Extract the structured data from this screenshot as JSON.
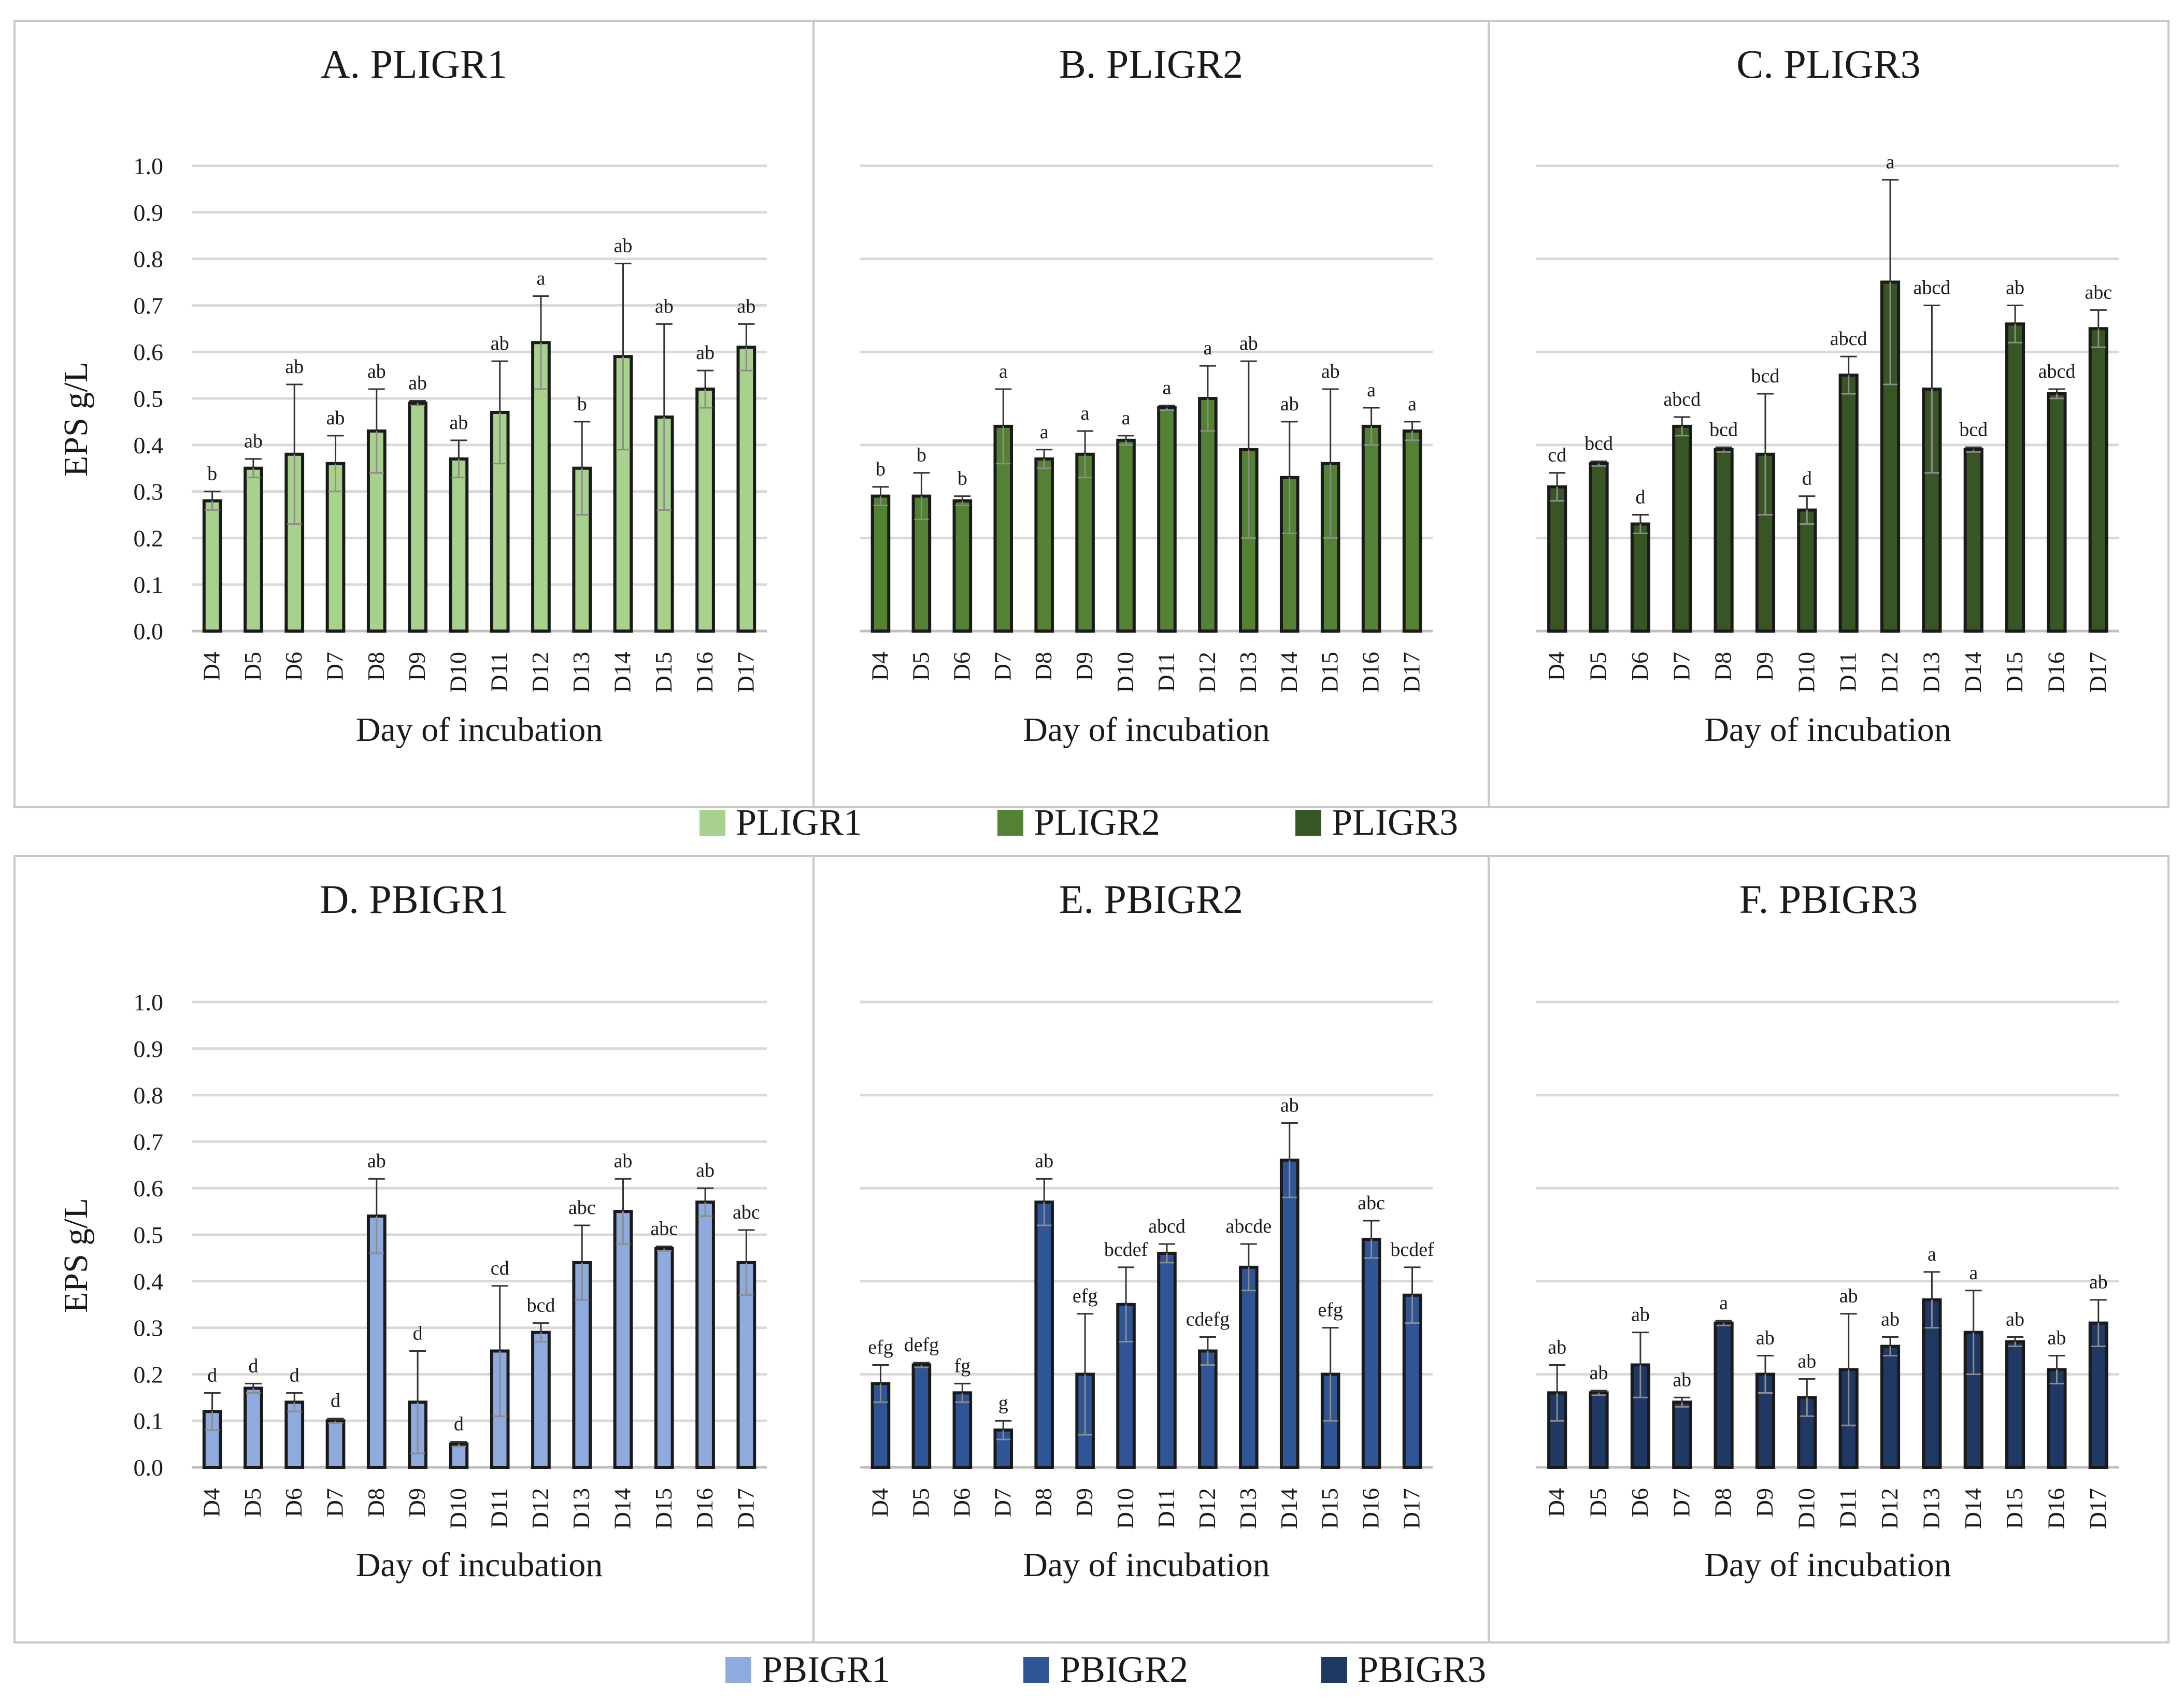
{
  "colors": {
    "PLIGR1": "#a9d18e",
    "PLIGR2": "#548235",
    "PLIGR3": "#375623",
    "PBIGR1": "#8faadc",
    "PBIGR2": "#2f5597",
    "PBIGR3": "#203864"
  },
  "legends": [
    {
      "row": 0,
      "items": [
        "PLIGR1",
        "PLIGR2",
        "PLIGR3"
      ]
    },
    {
      "row": 1,
      "items": [
        "PBIGR1",
        "PBIGR2",
        "PBIGR3"
      ]
    }
  ],
  "chart_data": [
    {
      "type": "bar",
      "title": "A. PLIGR1",
      "series_name": "PLIGR1",
      "xlabel": "Day of incubation",
      "ylabel": "EPS g/L",
      "show_y_ticks": true,
      "ylim": [
        0,
        1.0
      ],
      "yticks": [
        "0.0",
        "0.1",
        "0.2",
        "0.3",
        "0.4",
        "0.5",
        "0.6",
        "0.7",
        "0.8",
        "0.9",
        "1.0"
      ],
      "categories": [
        "D4",
        "D5",
        "D6",
        "D7",
        "D8",
        "D9",
        "D10",
        "D11",
        "D12",
        "D13",
        "D14",
        "D15",
        "D16",
        "D17"
      ],
      "values": [
        0.28,
        0.35,
        0.38,
        0.36,
        0.43,
        0.49,
        0.37,
        0.47,
        0.62,
        0.35,
        0.59,
        0.46,
        0.52,
        0.61
      ],
      "error_up": [
        0.02,
        0.02,
        0.15,
        0.06,
        0.09,
        0.005,
        0.04,
        0.11,
        0.1,
        0.1,
        0.2,
        0.2,
        0.04,
        0.05
      ],
      "letters": [
        "b",
        "ab",
        "ab",
        "ab",
        "ab",
        "ab",
        "ab",
        "ab",
        "a",
        "b",
        "ab",
        "ab",
        "ab",
        "ab"
      ]
    },
    {
      "type": "bar",
      "title": "B. PLIGR2",
      "series_name": "PLIGR2",
      "xlabel": "Day of incubation",
      "ylabel": "",
      "show_y_ticks": false,
      "ylim": [
        0,
        1.0
      ],
      "yticks": [],
      "categories": [
        "D4",
        "D5",
        "D6",
        "D7",
        "D8",
        "D9",
        "D10",
        "D11",
        "D12",
        "D13",
        "D14",
        "D15",
        "D16",
        "D17"
      ],
      "values": [
        0.29,
        0.29,
        0.28,
        0.44,
        0.37,
        0.38,
        0.41,
        0.48,
        0.5,
        0.39,
        0.33,
        0.36,
        0.44,
        0.43
      ],
      "error_up": [
        0.02,
        0.05,
        0.01,
        0.08,
        0.02,
        0.05,
        0.01,
        0.005,
        0.07,
        0.19,
        0.12,
        0.16,
        0.04,
        0.02
      ],
      "letters": [
        "b",
        "b",
        "b",
        "a",
        "a",
        "a",
        "a",
        "a",
        "a",
        "ab",
        "ab",
        "ab",
        "a",
        "a"
      ]
    },
    {
      "type": "bar",
      "title": "C. PLIGR3",
      "series_name": "PLIGR3",
      "xlabel": "Day of incubation",
      "ylabel": "",
      "show_y_ticks": false,
      "ylim": [
        0,
        1.0
      ],
      "yticks": [],
      "categories": [
        "D4",
        "D5",
        "D6",
        "D7",
        "D8",
        "D9",
        "D10",
        "D11",
        "D12",
        "D13",
        "D14",
        "D15",
        "D16",
        "D17"
      ],
      "values": [
        0.31,
        0.36,
        0.23,
        0.44,
        0.39,
        0.38,
        0.26,
        0.55,
        0.75,
        0.52,
        0.39,
        0.66,
        0.51,
        0.65
      ],
      "error_up": [
        0.03,
        0.005,
        0.02,
        0.02,
        0.005,
        0.13,
        0.03,
        0.04,
        0.22,
        0.18,
        0.005,
        0.04,
        0.01,
        0.04
      ],
      "letters": [
        "cd",
        "bcd",
        "d",
        "abcd",
        "bcd",
        "bcd",
        "d",
        "abcd",
        "a",
        "abcd",
        "bcd",
        "ab",
        "abcd",
        "abc"
      ]
    },
    {
      "type": "bar",
      "title": "D. PBIGR1",
      "series_name": "PBIGR1",
      "xlabel": "Day of incubation",
      "ylabel": "EPS g/L",
      "show_y_ticks": true,
      "ylim": [
        0,
        1.0
      ],
      "yticks": [
        "0.0",
        "0.1",
        "0.2",
        "0.3",
        "0.4",
        "0.5",
        "0.6",
        "0.7",
        "0.8",
        "0.9",
        "1.0"
      ],
      "categories": [
        "D4",
        "D5",
        "D6",
        "D7",
        "D8",
        "D9",
        "D10",
        "D11",
        "D12",
        "D13",
        "D14",
        "D15",
        "D16",
        "D17"
      ],
      "values": [
        0.12,
        0.17,
        0.14,
        0.1,
        0.54,
        0.14,
        0.05,
        0.25,
        0.29,
        0.44,
        0.55,
        0.47,
        0.57,
        0.44
      ],
      "error_up": [
        0.04,
        0.01,
        0.02,
        0.005,
        0.08,
        0.11,
        0.005,
        0.14,
        0.02,
        0.08,
        0.07,
        0.005,
        0.03,
        0.07
      ],
      "letters": [
        "d",
        "d",
        "d",
        "d",
        "ab",
        "d",
        "d",
        "cd",
        "bcd",
        "abc",
        "ab",
        "abc",
        "ab",
        "abc"
      ]
    },
    {
      "type": "bar",
      "title": "E. PBIGR2",
      "series_name": "PBIGR2",
      "xlabel": "Day of incubation",
      "ylabel": "",
      "show_y_ticks": false,
      "ylim": [
        0,
        1.0
      ],
      "yticks": [],
      "categories": [
        "D4",
        "D5",
        "D6",
        "D7",
        "D8",
        "D9",
        "D10",
        "D11",
        "D12",
        "D13",
        "D14",
        "D15",
        "D16",
        "D17"
      ],
      "values": [
        0.18,
        0.22,
        0.16,
        0.08,
        0.57,
        0.2,
        0.35,
        0.46,
        0.25,
        0.43,
        0.66,
        0.2,
        0.49,
        0.37
      ],
      "error_up": [
        0.04,
        0.005,
        0.02,
        0.02,
        0.05,
        0.13,
        0.08,
        0.02,
        0.03,
        0.05,
        0.08,
        0.1,
        0.04,
        0.06
      ],
      "letters": [
        "efg",
        "defg",
        "fg",
        "g",
        "ab",
        "efg",
        "bcdef",
        "abcd",
        "cdefg",
        "abcde",
        "ab",
        "efg",
        "abc",
        "bcdef"
      ]
    },
    {
      "type": "bar",
      "title": "F. PBIGR3",
      "series_name": "PBIGR3",
      "xlabel": "Day of incubation",
      "ylabel": "",
      "show_y_ticks": false,
      "ylim": [
        0,
        1.0
      ],
      "yticks": [],
      "categories": [
        "D4",
        "D5",
        "D6",
        "D7",
        "D8",
        "D9",
        "D10",
        "D11",
        "D12",
        "D13",
        "D14",
        "D15",
        "D16",
        "D17"
      ],
      "values": [
        0.16,
        0.16,
        0.22,
        0.14,
        0.31,
        0.2,
        0.15,
        0.21,
        0.26,
        0.36,
        0.29,
        0.27,
        0.21,
        0.31
      ],
      "error_up": [
        0.06,
        0.005,
        0.07,
        0.01,
        0.005,
        0.04,
        0.04,
        0.12,
        0.02,
        0.06,
        0.09,
        0.01,
        0.03,
        0.05
      ],
      "letters": [
        "ab",
        "ab",
        "ab",
        "ab",
        "a",
        "ab",
        "ab",
        "ab",
        "ab",
        "a",
        "a",
        "ab",
        "ab",
        "ab"
      ]
    }
  ]
}
